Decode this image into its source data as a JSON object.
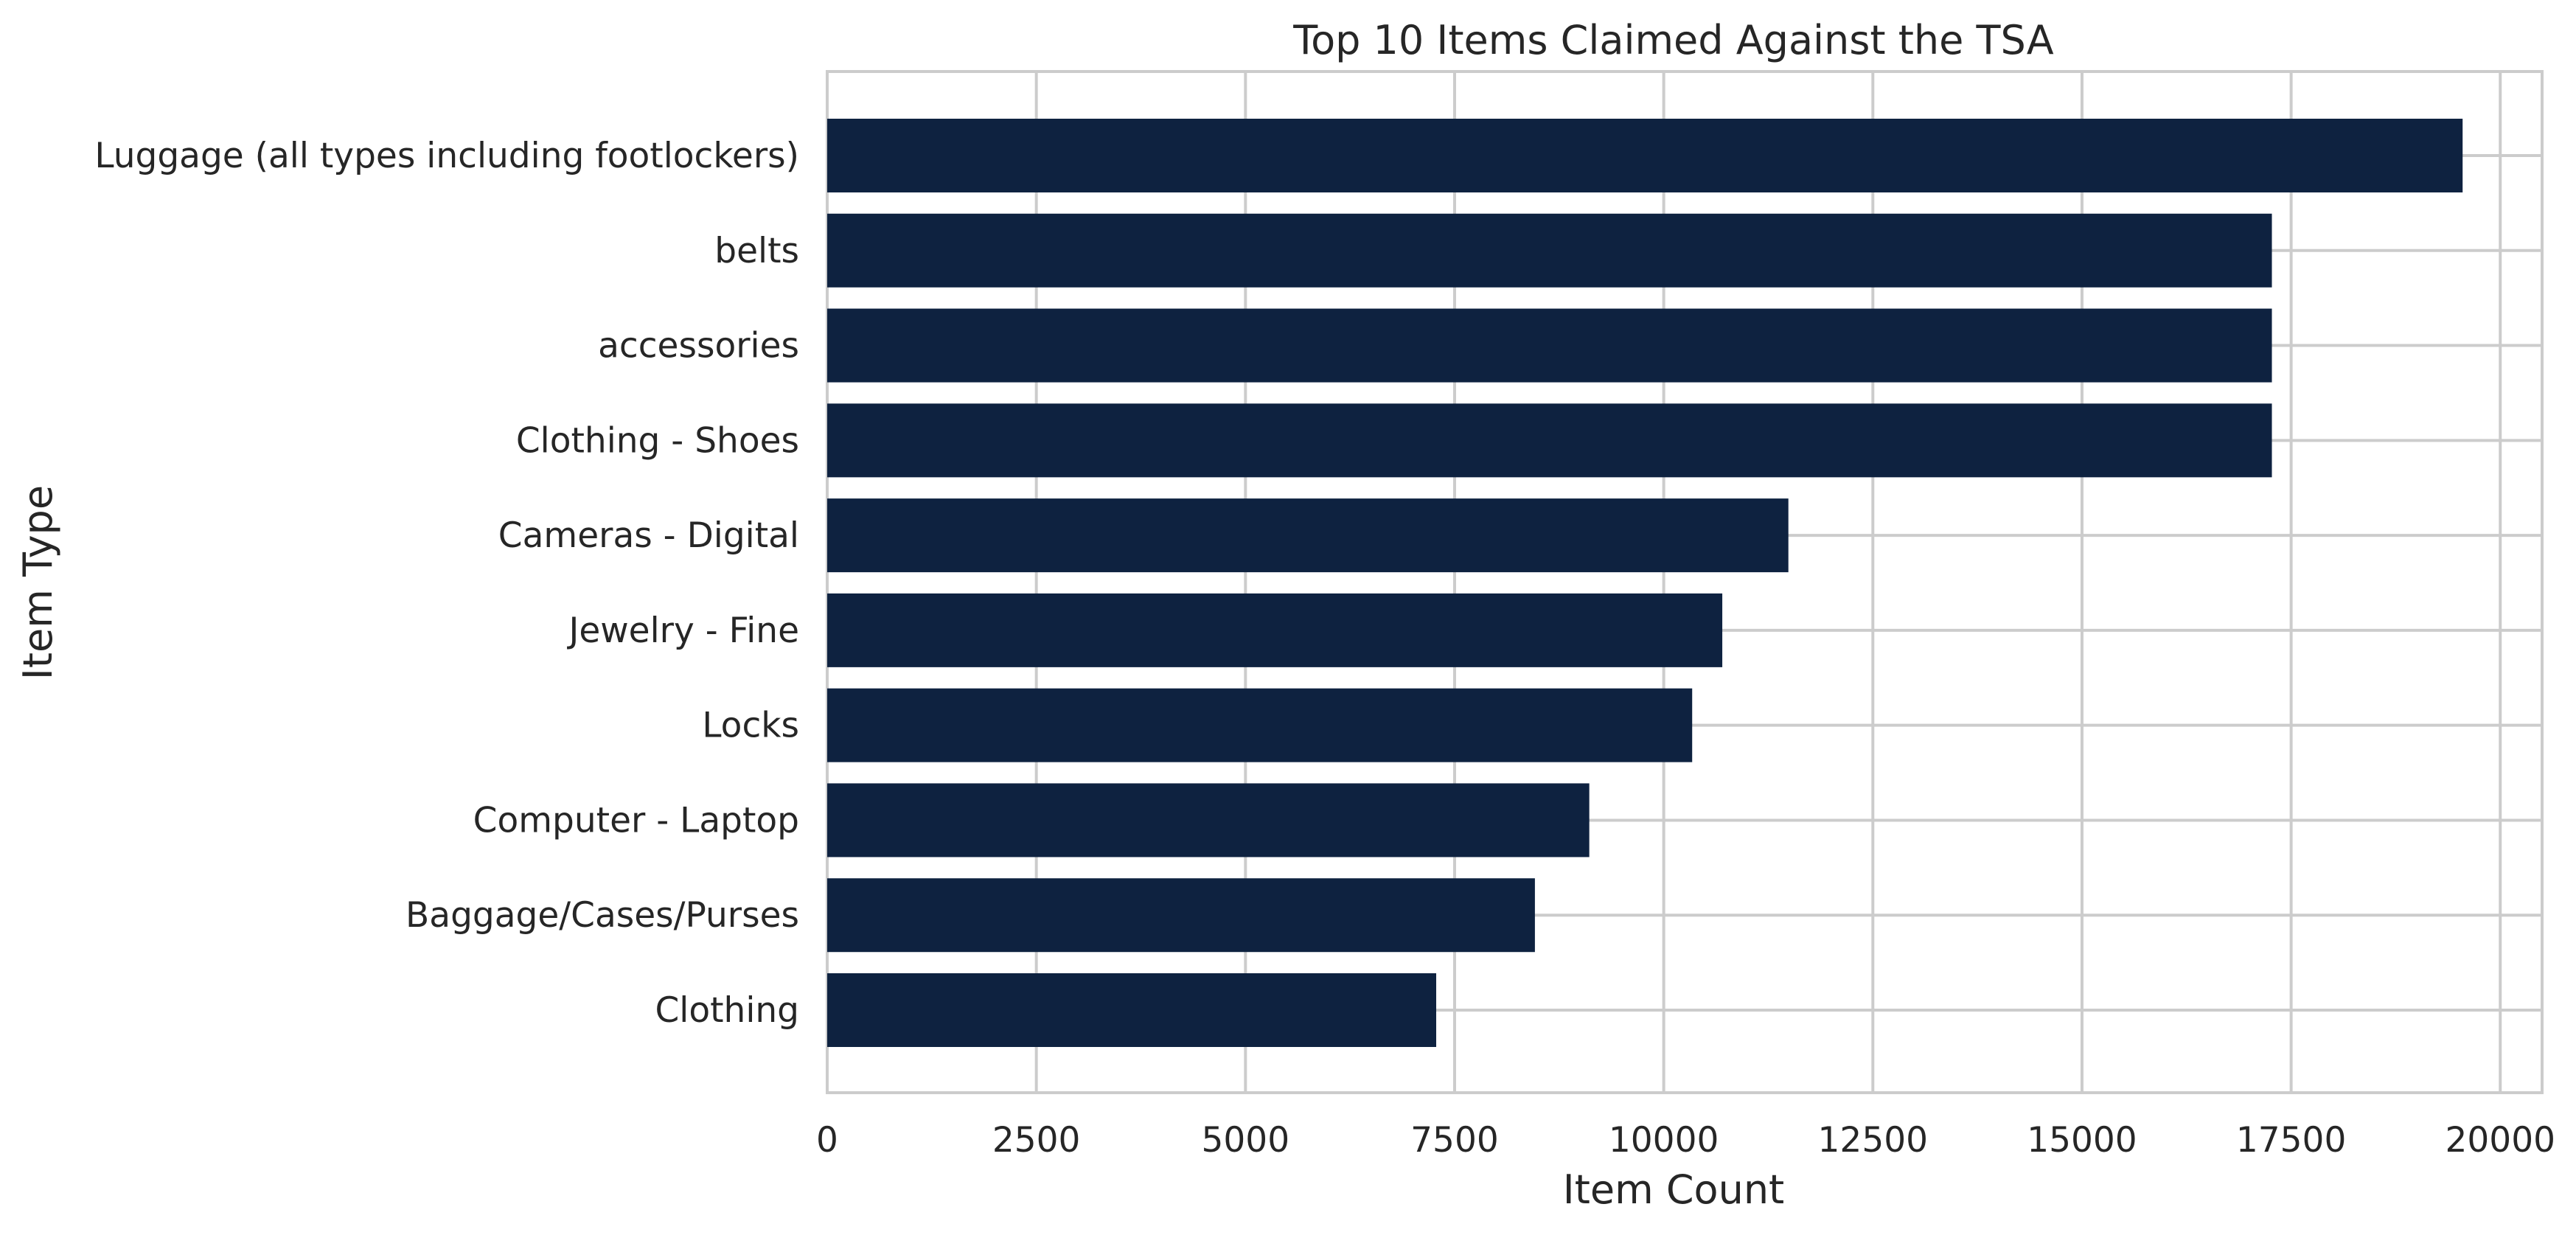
{
  "chart_data": {
    "type": "bar",
    "orientation": "horizontal",
    "title": "Top 10 Items Claimed Against the TSA",
    "xlabel": "Item Count",
    "ylabel": "Item Type",
    "categories": [
      "Luggage (all types including footlockers)",
      "belts",
      "accessories",
      "Clothing - Shoes",
      "Cameras - Digital",
      "Jewelry - Fine",
      "Locks",
      "Computer - Laptop",
      "Baggage/Cases/Purses",
      "Clothing"
    ],
    "values": [
      19550,
      17270,
      17270,
      17270,
      11490,
      10700,
      10340,
      9110,
      8460,
      7280
    ],
    "xlim": [
      0,
      20500
    ],
    "xticks": [
      0,
      2500,
      5000,
      7500,
      10000,
      12500,
      15000,
      17500,
      20000
    ],
    "grid": true,
    "bar_color": "#0e2240",
    "grid_color": "#cccccc",
    "text_color": "#262626"
  }
}
